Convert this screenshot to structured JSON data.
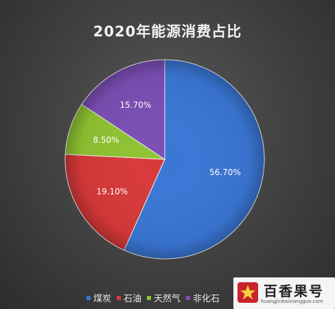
{
  "chart_data": {
    "type": "pie",
    "title": "2020年能源消费占比",
    "slices": [
      {
        "name": "煤炭",
        "value": 56.7,
        "label": "56.70%",
        "color": "#3a77d6"
      },
      {
        "name": "石油",
        "value": 19.1,
        "label": "19.10%",
        "color": "#d8393a"
      },
      {
        "name": "天然气",
        "value": 8.5,
        "label": "8.50%",
        "color": "#8fc432"
      },
      {
        "name": "非化石",
        "value": 15.7,
        "label": "15.70%",
        "color": "#7b4fb5"
      }
    ],
    "legend_position": "bottom"
  },
  "legend_items": [
    "煤炭",
    "石油",
    "天然气",
    "非化石"
  ],
  "watermark": {
    "text": "百香果号",
    "url": "huangjinbaixiangguo.com"
  }
}
